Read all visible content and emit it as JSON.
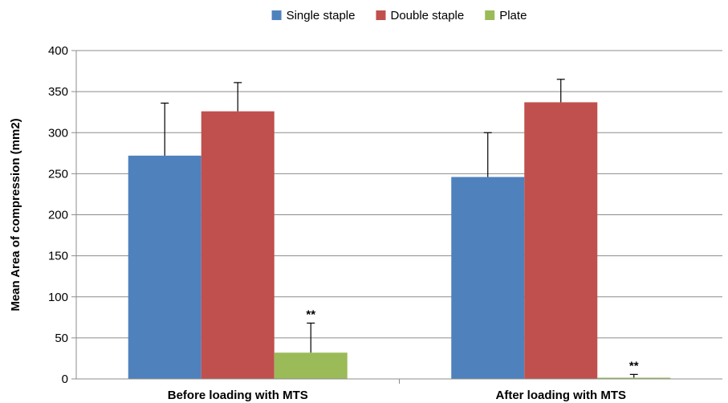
{
  "chart_data": {
    "type": "bar",
    "title": "",
    "xlabel": "",
    "ylabel": "Mean Area of compression (mm2)",
    "categories": [
      "Before loading with MTS",
      "After loading with MTS"
    ],
    "series": [
      {
        "name": "Single staple",
        "color": "#4F81BD",
        "values": [
          272,
          246
        ],
        "errors": [
          64,
          54
        ]
      },
      {
        "name": "Double staple",
        "color": "#C0504D",
        "values": [
          326,
          337
        ],
        "errors": [
          35,
          28
        ]
      },
      {
        "name": "Plate",
        "color": "#9BBB59",
        "values": [
          32,
          1.5
        ],
        "errors": [
          36,
          4
        ]
      }
    ],
    "annotations": [
      {
        "text": "**",
        "category": 0,
        "series": 2
      },
      {
        "text": "**",
        "category": 1,
        "series": 2
      }
    ],
    "ylim": [
      0,
      400
    ],
    "yticks": [
      "0",
      "50",
      "100",
      "150",
      "200",
      "250",
      "300",
      "350",
      "400"
    ],
    "grid": true,
    "legend": "top-center"
  }
}
